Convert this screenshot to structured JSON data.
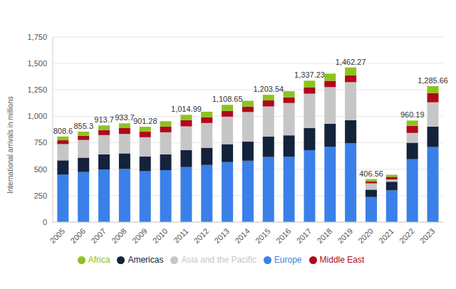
{
  "chart_data": {
    "type": "bar",
    "stacked": true,
    "grid": true,
    "legend": "bottom",
    "y_label": "International arrivals in millions",
    "categories": [
      "2005",
      "2006",
      "2007",
      "2008",
      "2009",
      "2010",
      "2011",
      "2012",
      "2013",
      "2014",
      "2015",
      "2016",
      "2017",
      "2018",
      "2019",
      "2020",
      "2021",
      "2022",
      "2023"
    ],
    "series": [
      {
        "name": "Europe",
        "color": "#3a80e8",
        "values": [
          450.6,
          473.3,
          497.7,
          501.7,
          480.28,
          491,
          519.99,
          540,
          567,
          580,
          615.54,
          619,
          680.23,
          713,
          744,
          237,
          300,
          594.19,
          709.66
        ]
      },
      {
        "name": "Americas",
        "color": "#14233c",
        "values": [
          133,
          136,
          143,
          148,
          141,
          150,
          160,
          163,
          170,
          181,
          194,
          201,
          210,
          216,
          219,
          70,
          82,
          156,
          193
        ]
      },
      {
        "name": "Asia and the Pacific",
        "color": "#c6c6c6",
        "values": [
          154,
          167,
          182,
          184,
          181,
          208,
          225,
          234,
          260,
          280,
          284,
          306,
          324,
          347,
          360,
          59,
          21,
          93,
          230
        ]
      },
      {
        "name": "Middle East",
        "color": "#b0091a",
        "values": [
          36,
          39,
          47,
          55,
          53,
          55,
          60,
          55,
          55,
          51,
          57,
          54,
          58,
          60,
          65,
          20,
          25,
          67,
          87
        ]
      },
      {
        "name": "Africa",
        "color": "#8cc320",
        "values": [
          35,
          40,
          44,
          45,
          46,
          50,
          50,
          52,
          56.65,
          55,
          53,
          58,
          65,
          68,
          74.27,
          20.56,
          20,
          50,
          66
        ]
      }
    ],
    "totals": [
      {
        "category": "2005",
        "value": 808.6,
        "label": "808.6"
      },
      {
        "category": "2006",
        "value": 855.3,
        "label": "855.3"
      },
      {
        "category": "2007",
        "value": 913.7,
        "label": "913.7"
      },
      {
        "category": "2008",
        "value": 933.7,
        "label": "933.7"
      },
      {
        "category": "2009",
        "value": 901.28,
        "label": "901.28"
      },
      {
        "category": "2011",
        "value": 1014.99,
        "label": "1,014.99"
      },
      {
        "category": "2013",
        "value": 1108.65,
        "label": "1,108.65"
      },
      {
        "category": "2015",
        "value": 1203.54,
        "label": "1,203.54"
      },
      {
        "category": "2017",
        "value": 1337.23,
        "label": "1,337.23"
      },
      {
        "category": "2019",
        "value": 1462.27,
        "label": "1,462.27"
      },
      {
        "category": "2020",
        "value": 406.56,
        "label": "406.56"
      },
      {
        "category": "2022",
        "value": 960.19,
        "label": "960.19"
      },
      {
        "category": "2023",
        "value": 1285.66,
        "label": "1,285.66"
      }
    ],
    "ylim": [
      0,
      1750
    ],
    "yticks": [
      0,
      250,
      500,
      750,
      {
        "value": 1000,
        "label": "1,000"
      },
      {
        "value": 1250,
        "label": "1,250"
      },
      {
        "value": 1500,
        "label": "1,500"
      },
      {
        "value": 1750,
        "label": "1,750"
      }
    ]
  }
}
